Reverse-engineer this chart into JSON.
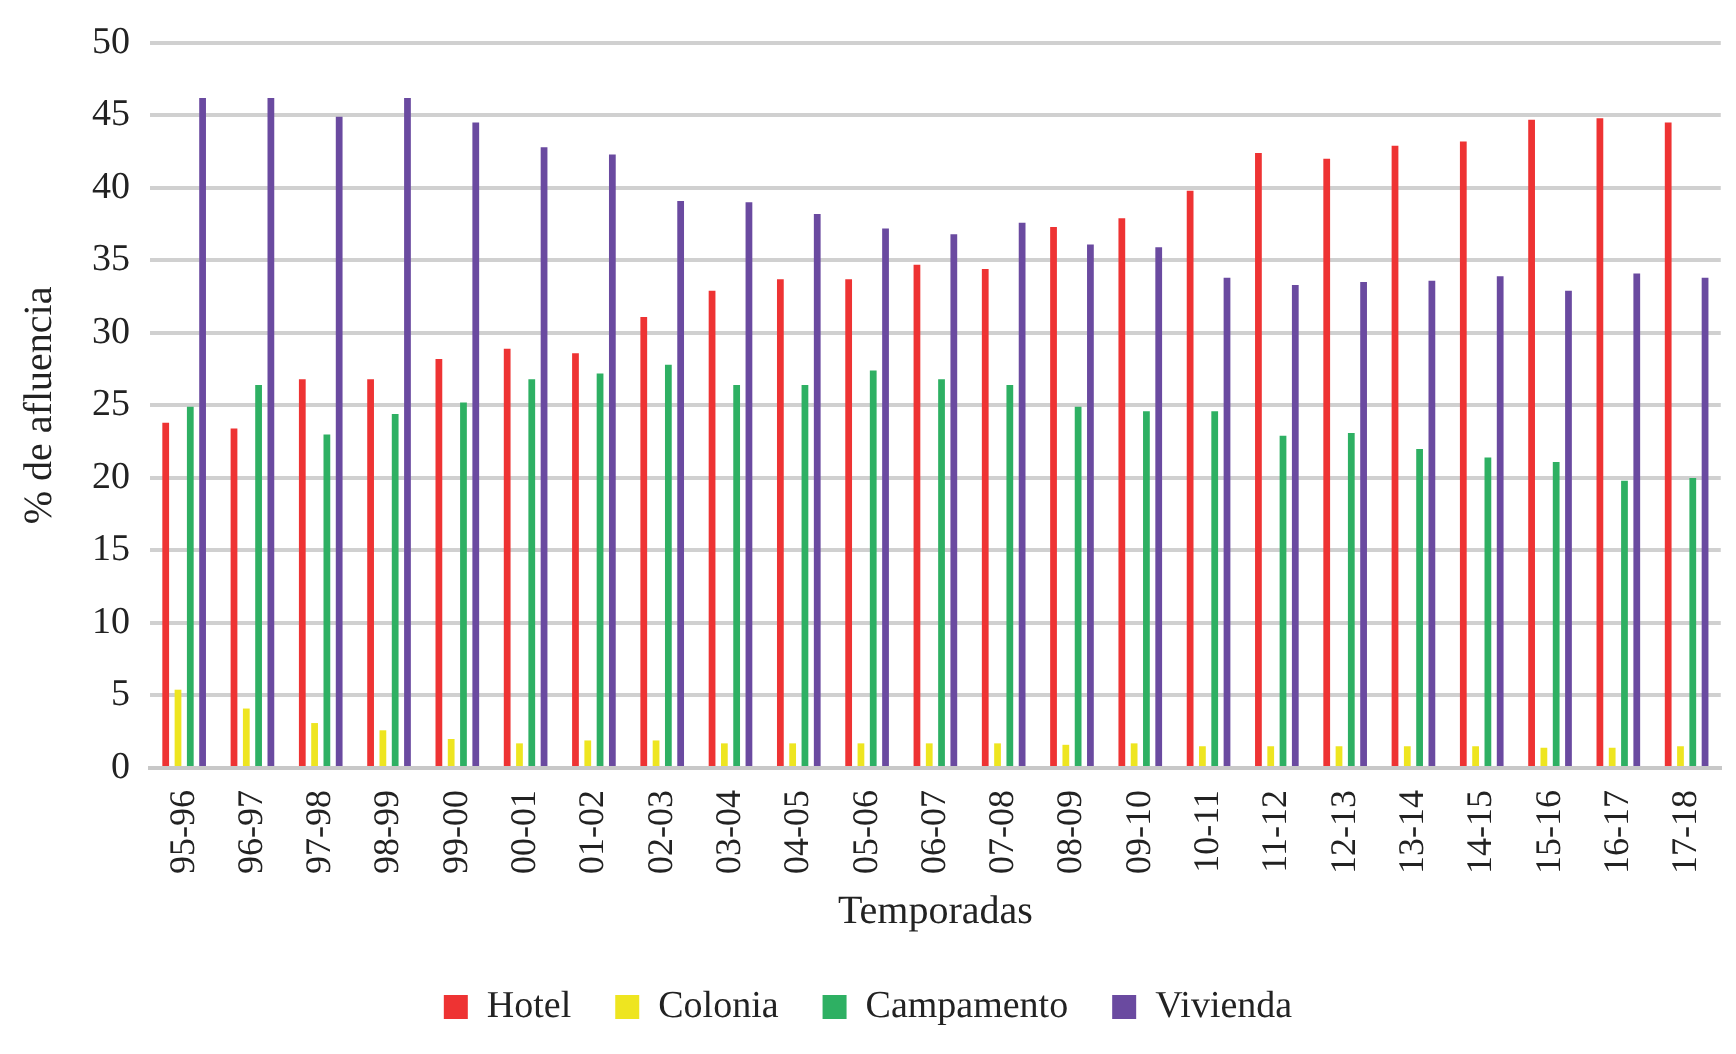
{
  "chart_data": {
    "type": "bar",
    "xlabel": "Temporadas",
    "ylabel": "% de afluencia",
    "categories": [
      "95-96",
      "96-97",
      "97-98",
      "98-99",
      "99-00",
      "00-01",
      "01-02",
      "02-03",
      "03-04",
      "04-05",
      "05-06",
      "06-07",
      "07-08",
      "08-09",
      "09-10",
      "10-11",
      "11-12",
      "12-13",
      "13-14",
      "14-15",
      "15-16",
      "16-17",
      "17-18"
    ],
    "series": [
      {
        "name": "Hotel",
        "color": "#ee3333",
        "values": [
          23.8,
          23.4,
          26.8,
          26.8,
          28.2,
          28.9,
          28.6,
          31.1,
          32.9,
          33.7,
          33.7,
          34.7,
          34.4,
          37.3,
          37.9,
          39.8,
          42.4,
          42.0,
          42.9,
          43.2,
          44.7,
          44.8,
          44.5
        ]
      },
      {
        "name": "Colonia",
        "color": "#eee520",
        "values": [
          5.4,
          4.1,
          3.1,
          2.6,
          2.0,
          1.7,
          1.9,
          1.9,
          1.7,
          1.7,
          1.7,
          1.7,
          1.7,
          1.6,
          1.7,
          1.5,
          1.5,
          1.5,
          1.5,
          1.5,
          1.4,
          1.4,
          1.5
        ]
      },
      {
        "name": "Campamento",
        "color": "#2eb063",
        "values": [
          24.9,
          26.4,
          23.0,
          24.4,
          25.2,
          26.8,
          27.2,
          27.8,
          26.4,
          26.4,
          27.4,
          26.8,
          26.4,
          24.9,
          24.6,
          24.6,
          22.9,
          23.1,
          22.0,
          21.4,
          21.1,
          19.8,
          20.0
        ]
      },
      {
        "name": "Vivienda",
        "color": "#6a4aa0",
        "values": [
          46.2,
          46.2,
          44.9,
          46.2,
          44.5,
          42.8,
          42.3,
          39.1,
          39.0,
          38.2,
          37.2,
          36.8,
          37.6,
          36.1,
          35.9,
          33.8,
          33.3,
          33.5,
          33.6,
          33.9,
          32.9,
          34.1,
          33.8
        ]
      }
    ],
    "ylim": [
      0,
      50
    ],
    "yticks": [
      0,
      5,
      10,
      15,
      20,
      25,
      30,
      35,
      40,
      45,
      50
    ],
    "grid": "y",
    "legend": "bottom"
  }
}
